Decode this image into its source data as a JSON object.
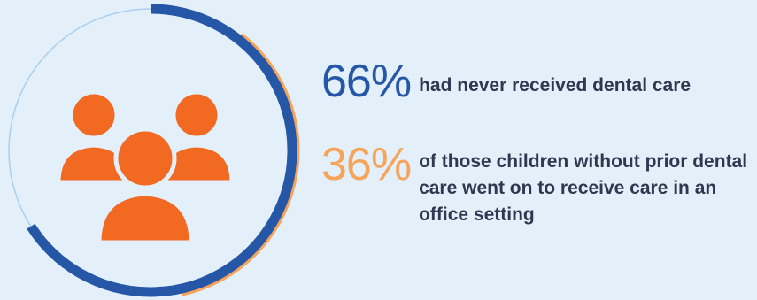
{
  "chart_data": {
    "type": "donut",
    "series": [
      {
        "values": [
          66,
          36
        ]
      }
    ],
    "ring_colors": [
      "#2656a6",
      "#f5a45a"
    ],
    "track_color": "#a9cff0"
  },
  "stats": [
    {
      "value": "66%",
      "text": "had never received dental care",
      "color": "#2656a6"
    },
    {
      "value": "36%",
      "text": "of those children without prior dental care went on to receive care in an office setting",
      "color": "#f5a45a"
    }
  ],
  "icon": {
    "name": "people-group-icon",
    "color": "#f26a21"
  }
}
